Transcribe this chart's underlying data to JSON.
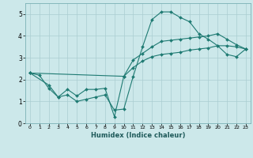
{
  "xlabel": "Humidex (Indice chaleur)",
  "bg_color": "#cce8ea",
  "grid_color": "#aacdd1",
  "line_color": "#1e7a72",
  "xlim": [
    -0.5,
    23.5
  ],
  "ylim": [
    0,
    5.5
  ],
  "xticks": [
    0,
    1,
    2,
    3,
    4,
    5,
    6,
    7,
    8,
    9,
    10,
    11,
    12,
    13,
    14,
    15,
    16,
    17,
    18,
    19,
    20,
    21,
    22,
    23
  ],
  "yticks": [
    0,
    1,
    2,
    3,
    4,
    5
  ],
  "line1_x": [
    0,
    1,
    2,
    3,
    4,
    5,
    6,
    7,
    8,
    9,
    10,
    11,
    12,
    13,
    14,
    15,
    16,
    17,
    18,
    19,
    20,
    21,
    22,
    23
  ],
  "line1_y": [
    2.3,
    2.2,
    1.6,
    1.2,
    1.3,
    1.0,
    1.1,
    1.2,
    1.3,
    0.6,
    0.65,
    2.15,
    3.5,
    4.75,
    5.1,
    5.1,
    4.85,
    4.65,
    4.1,
    3.85,
    3.55,
    3.55,
    3.5,
    3.4
  ],
  "line2_x": [
    0,
    2,
    3,
    4,
    5,
    6,
    7,
    8,
    9,
    10,
    11,
    12,
    13,
    14,
    15,
    16,
    17,
    18,
    19,
    20,
    21,
    22,
    23
  ],
  "line2_y": [
    2.3,
    1.75,
    1.2,
    1.55,
    1.25,
    1.55,
    1.55,
    1.6,
    0.3,
    2.15,
    2.9,
    3.2,
    3.5,
    3.75,
    3.8,
    3.85,
    3.9,
    3.95,
    4.0,
    4.1,
    3.85,
    3.6,
    3.4
  ],
  "line3_x": [
    0,
    10,
    11,
    12,
    13,
    14,
    15,
    16,
    17,
    18,
    19,
    20,
    21,
    22,
    23
  ],
  "line3_y": [
    2.3,
    2.15,
    2.55,
    2.85,
    3.05,
    3.15,
    3.2,
    3.25,
    3.35,
    3.4,
    3.45,
    3.55,
    3.15,
    3.05,
    3.4
  ]
}
